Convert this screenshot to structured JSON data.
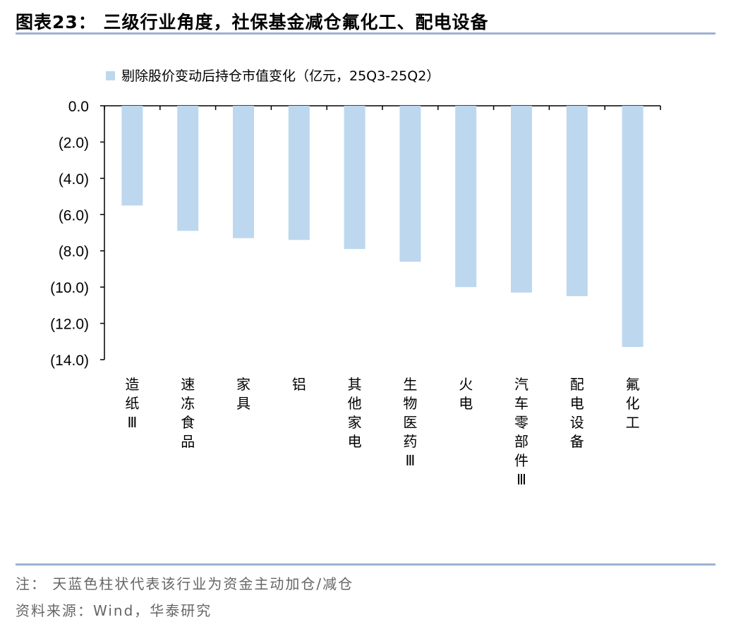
{
  "title": "图表23：  三级行业角度，社保基金减仓氟化工、配电设备",
  "note": "注：  天蓝色柱状代表该行业为资金主动加仓/减仓",
  "source": "资料来源：Wind，华泰研究",
  "colors": {
    "bar": "#BDD7EE",
    "rule": "#9DB3CF"
  },
  "chart_data": {
    "type": "bar",
    "title": "",
    "legend": [
      "剔除股价变动后持仓市值变化（亿元，25Q3-25Q2）"
    ],
    "legend_position": "top",
    "categories": [
      "造纸Ⅲ",
      "速冻食品",
      "家具",
      "铝",
      "其他家电",
      "生物医药Ⅲ",
      "火电",
      "汽车零部件Ⅲ",
      "配电设备",
      "氟化工"
    ],
    "values": [
      -5.5,
      -6.9,
      -7.3,
      -7.4,
      -7.9,
      -8.6,
      -10.0,
      -10.3,
      -10.5,
      -13.3
    ],
    "ylim": [
      -14,
      0
    ],
    "yticks": [
      0,
      -2,
      -4,
      -6,
      -8,
      -10,
      -12,
      -14
    ],
    "ytick_labels": [
      "0.0",
      "(2.0)",
      "(4.0)",
      "(6.0)",
      "(8.0)",
      "(10.0)",
      "(12.0)",
      "(14.0)"
    ],
    "xlabel": "",
    "ylabel": "",
    "grid": false
  }
}
